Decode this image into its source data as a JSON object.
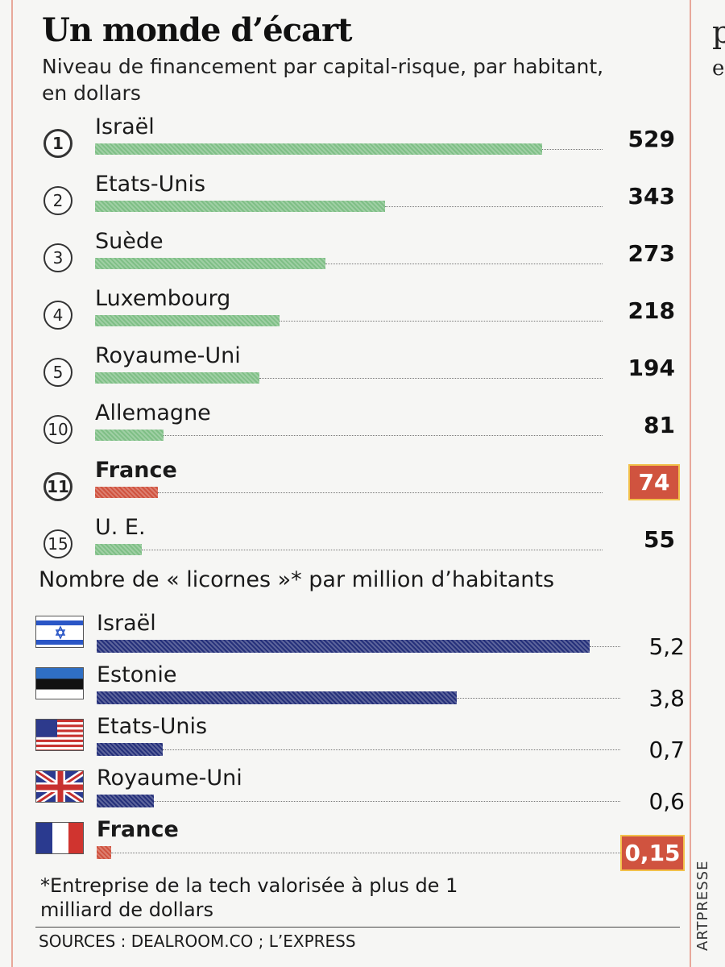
{
  "title": "Un monde d’écart",
  "subtitle": "Niveau de financement par capital-risque, par habitant, en dollars",
  "next_column_fragments": [
    "p",
    "e"
  ],
  "colors": {
    "bar_default": "#7fbf86",
    "bar_france": "#d0533f",
    "bar_licornes": "#25307a",
    "highlight": "#d0533f"
  },
  "chart_data": [
    {
      "type": "bar",
      "title": "Niveau de financement par capital-risque, par habitant, en dollars",
      "categories": [
        "Israël",
        "Etats-Unis",
        "Suède",
        "Luxembourg",
        "Royaume-Uni",
        "Allemagne",
        "France",
        "U. E."
      ],
      "ranks": [
        "1",
        "2",
        "3",
        "4",
        "5",
        "10",
        "11",
        "15"
      ],
      "values": [
        529,
        343,
        273,
        218,
        194,
        81,
        74,
        55
      ],
      "value_labels": [
        "529",
        "343",
        "273",
        "218",
        "194",
        "81",
        "74",
        "55"
      ],
      "highlight": "France",
      "xlim": [
        0,
        529
      ],
      "grid": false
    },
    {
      "type": "bar",
      "title": "Nombre de « licornes »* par million d’habitants",
      "categories": [
        "Israël",
        "Estonie",
        "Etats-Unis",
        "Royaume-Uni",
        "France"
      ],
      "flags": [
        "israel-flag",
        "estonia-flag",
        "usa-flag",
        "uk-flag",
        "france-flag"
      ],
      "values": [
        5.2,
        3.8,
        0.7,
        0.6,
        0.15
      ],
      "value_labels": [
        "5,2",
        "3,8",
        "0,7",
        "0,6",
        "0,15"
      ],
      "highlight": "France",
      "xlim": [
        0,
        5.2
      ],
      "grid": false
    }
  ],
  "footnote": "*Entreprise de la tech valorisée à plus de 1 milliard de dollars",
  "sources": "SOURCES : DEALROOM.CO ; L’EXPRESS",
  "credit": "ARTPRESSE"
}
